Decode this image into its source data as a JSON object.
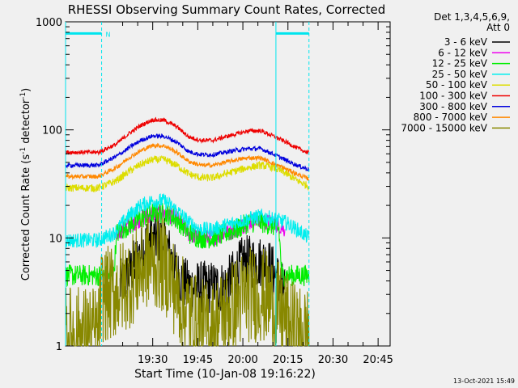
{
  "chart_data": {
    "type": "line",
    "title": "RHESSI Observing Summary Count Rates, Corrected",
    "xlabel": "Start Time (10-Jan-08 19:16:22)",
    "ylabel": "Corrected Count Rate (s⁻¹ detector⁻¹)",
    "ylabel_main": "Corrected Count Rate (s",
    "ylabel_sup1": "-1",
    "ylabel_mid": " detector",
    "ylabel_sup2": "-1",
    "ylabel_end": ")",
    "y_scale": "log",
    "ylim": [
      1,
      1000
    ],
    "xlim_minutes": [
      -15,
      93
    ],
    "x_ticks": [
      {
        "label": "19:30",
        "min": 14
      },
      {
        "label": "19:45",
        "min": 29
      },
      {
        "label": "20:00",
        "min": 44
      },
      {
        "label": "20:15",
        "min": 59
      },
      {
        "label": "20:30",
        "min": 74
      },
      {
        "label": "20:45",
        "min": 89
      }
    ],
    "y_ticks": [
      {
        "label": "1",
        "v": 1
      },
      {
        "label": "10",
        "v": 10
      },
      {
        "label": "100",
        "v": 100
      },
      {
        "label": "1000",
        "v": 1000
      }
    ],
    "legend_header": [
      "Det 1,3,4,5,6,9,",
      "Att 0"
    ],
    "series": [
      {
        "name": "3 - 6 keV",
        "color": "#000000",
        "points": [
          [
            -16,
            null
          ],
          [
            2,
            null
          ],
          [
            3,
            3.5
          ],
          [
            6,
            4.5
          ],
          [
            9,
            6.5
          ],
          [
            12,
            9
          ],
          [
            16,
            10
          ],
          [
            19,
            8
          ],
          [
            22,
            4.5
          ],
          [
            26,
            3.5
          ],
          [
            30,
            3.5
          ],
          [
            34,
            3.5
          ],
          [
            38,
            3.5
          ],
          [
            41,
            4.5
          ],
          [
            44,
            6
          ],
          [
            48,
            6
          ],
          [
            52,
            6
          ],
          [
            56,
            4
          ],
          [
            58,
            3
          ],
          [
            60,
            null
          ],
          [
            95,
            null
          ]
        ],
        "noise": 0.25
      },
      {
        "name": "6 - 12 keV",
        "color": "#ee00ee",
        "points": [
          [
            -16,
            null
          ],
          [
            1,
            null
          ],
          [
            2,
            11
          ],
          [
            6,
            13
          ],
          [
            10,
            15
          ],
          [
            14,
            17
          ],
          [
            18,
            17
          ],
          [
            22,
            15
          ],
          [
            26,
            11
          ],
          [
            30,
            10
          ],
          [
            34,
            10
          ],
          [
            38,
            11
          ],
          [
            42,
            12
          ],
          [
            46,
            14
          ],
          [
            50,
            15
          ],
          [
            52,
            14
          ],
          [
            56,
            13
          ],
          [
            58,
            12
          ],
          [
            60,
            null
          ],
          [
            95,
            null
          ]
        ],
        "noise": 0.08
      },
      {
        "name": "12 - 25 keV",
        "color": "#00ee00",
        "points": [
          [
            -16,
            4.5
          ],
          [
            0,
            4.5
          ],
          [
            1,
            4.5
          ],
          [
            2,
            11
          ],
          [
            6,
            13
          ],
          [
            10,
            15
          ],
          [
            14,
            17
          ],
          [
            18,
            17
          ],
          [
            22,
            15
          ],
          [
            26,
            11
          ],
          [
            30,
            10
          ],
          [
            34,
            10
          ],
          [
            38,
            11
          ],
          [
            42,
            12
          ],
          [
            46,
            14
          ],
          [
            50,
            14
          ],
          [
            54,
            13
          ],
          [
            56,
            12
          ],
          [
            57,
            4.5
          ],
          [
            66,
            4.5
          ]
        ],
        "noise": 0.1
      },
      {
        "name": "25 - 50 keV",
        "color": "#00eeee",
        "points": [
          [
            -16,
            9.5
          ],
          [
            -4,
            9.5
          ],
          [
            1,
            11
          ],
          [
            6,
            16
          ],
          [
            10,
            20
          ],
          [
            14,
            22
          ],
          [
            18,
            22
          ],
          [
            22,
            18
          ],
          [
            26,
            14
          ],
          [
            30,
            12
          ],
          [
            34,
            12
          ],
          [
            38,
            13
          ],
          [
            42,
            14
          ],
          [
            46,
            15
          ],
          [
            50,
            16
          ],
          [
            54,
            15
          ],
          [
            58,
            14
          ],
          [
            62,
            12
          ],
          [
            66,
            10
          ]
        ],
        "noise": 0.07
      },
      {
        "name": "50 - 100 keV",
        "color": "#dddd00",
        "points": [
          [
            -16,
            29
          ],
          [
            -4,
            29
          ],
          [
            2,
            34
          ],
          [
            6,
            41
          ],
          [
            10,
            48
          ],
          [
            14,
            53
          ],
          [
            18,
            53
          ],
          [
            22,
            47
          ],
          [
            26,
            39
          ],
          [
            30,
            36
          ],
          [
            34,
            36
          ],
          [
            38,
            39
          ],
          [
            42,
            42
          ],
          [
            46,
            45
          ],
          [
            50,
            47
          ],
          [
            54,
            45
          ],
          [
            58,
            40
          ],
          [
            62,
            34
          ],
          [
            66,
            30
          ]
        ],
        "noise": 0.035
      },
      {
        "name": "100 - 300 keV",
        "color": "#ee0000",
        "points": [
          [
            -16,
            62
          ],
          [
            -4,
            62
          ],
          [
            2,
            74
          ],
          [
            6,
            92
          ],
          [
            10,
            110
          ],
          [
            14,
            124
          ],
          [
            18,
            122
          ],
          [
            22,
            107
          ],
          [
            26,
            86
          ],
          [
            30,
            80
          ],
          [
            34,
            80
          ],
          [
            38,
            86
          ],
          [
            42,
            92
          ],
          [
            46,
            98
          ],
          [
            50,
            98
          ],
          [
            54,
            88
          ],
          [
            58,
            78
          ],
          [
            62,
            68
          ],
          [
            66,
            61
          ]
        ],
        "noise": 0.02
      },
      {
        "name": "300 - 800 keV",
        "color": "#0000dd",
        "points": [
          [
            -16,
            47
          ],
          [
            -4,
            47
          ],
          [
            2,
            57
          ],
          [
            6,
            68
          ],
          [
            10,
            80
          ],
          [
            14,
            88
          ],
          [
            18,
            87
          ],
          [
            22,
            77
          ],
          [
            26,
            63
          ],
          [
            30,
            59
          ],
          [
            34,
            59
          ],
          [
            38,
            62
          ],
          [
            42,
            65
          ],
          [
            46,
            67
          ],
          [
            50,
            67
          ],
          [
            54,
            60
          ],
          [
            58,
            53
          ],
          [
            62,
            47
          ],
          [
            66,
            43
          ]
        ],
        "noise": 0.02
      },
      {
        "name": "800 - 7000 keV",
        "color": "#ff8800",
        "points": [
          [
            -16,
            37
          ],
          [
            -4,
            37
          ],
          [
            2,
            45
          ],
          [
            6,
            55
          ],
          [
            10,
            64
          ],
          [
            14,
            72
          ],
          [
            18,
            71
          ],
          [
            22,
            62
          ],
          [
            26,
            51
          ],
          [
            30,
            47
          ],
          [
            34,
            47
          ],
          [
            38,
            50
          ],
          [
            42,
            53
          ],
          [
            46,
            55
          ],
          [
            50,
            55
          ],
          [
            54,
            49
          ],
          [
            58,
            44
          ],
          [
            62,
            39
          ],
          [
            66,
            35
          ]
        ],
        "noise": 0.02
      },
      {
        "name": "7000 - 15000 keV",
        "color": "#888800",
        "points": [
          [
            -16,
            1.3
          ],
          [
            -4,
            1.3
          ],
          [
            -3,
            3
          ],
          [
            0,
            3
          ],
          [
            4,
            3.5
          ],
          [
            8,
            4.5
          ],
          [
            12,
            6
          ],
          [
            16,
            6
          ],
          [
            19,
            5
          ],
          [
            22,
            3
          ],
          [
            26,
            2
          ],
          [
            30,
            1.5
          ],
          [
            34,
            1.5
          ],
          [
            38,
            2
          ],
          [
            42,
            2.5
          ],
          [
            46,
            3
          ],
          [
            50,
            3
          ],
          [
            54,
            2.5
          ],
          [
            58,
            1.8
          ],
          [
            62,
            1.3
          ],
          [
            66,
            1.3
          ]
        ],
        "noise": 0.45
      }
    ],
    "attenuator_lines": [
      {
        "from": -15,
        "to": -3,
        "level": 780
      },
      {
        "from": 55,
        "to": 66,
        "level": 780
      }
    ],
    "vertical_markers": [
      -15,
      -3,
      55,
      66
    ],
    "marker_label": "N",
    "footer_stamp": "13-Oct-2021 15:49"
  }
}
